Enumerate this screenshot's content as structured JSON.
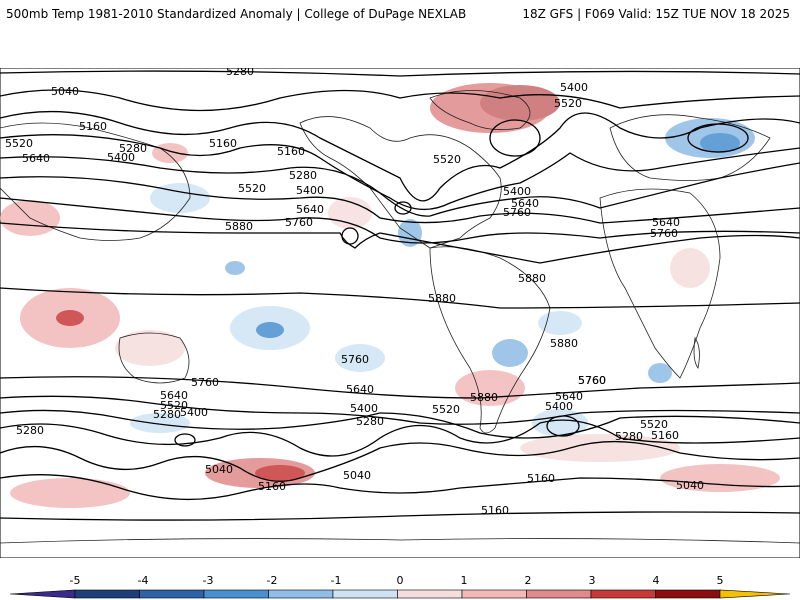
{
  "header": {
    "left": "500mb Temp 1981-2010 Standardized Anomaly | College of DuPage NEXLAB",
    "right": "18Z GFS | F069 Valid: 15Z TUE NOV 18 2025"
  },
  "colorbar": {
    "ticks": [
      "-5",
      "-4",
      "-3",
      "-2",
      "-1",
      "0",
      "1",
      "2",
      "3",
      "4",
      "5"
    ],
    "colors": [
      "#3a2a8c",
      "#1f3f7a",
      "#2f63a8",
      "#4a8fcf",
      "#8fbde6",
      "#cfe3f5",
      "#f6dede",
      "#f2b9b9",
      "#e08a8a",
      "#c83a3a",
      "#8b0d0d",
      "#f5c000"
    ]
  },
  "contour_labels": [
    "5280",
    "5040",
    "5160",
    "5520",
    "5640",
    "5400",
    "5280",
    "5160",
    "5160",
    "5280",
    "5400",
    "5520",
    "5640",
    "5760",
    "5880",
    "5400",
    "5520",
    "5520",
    "5400",
    "5640",
    "5760",
    "5640",
    "5760",
    "5880",
    "5880",
    "5880",
    "5760",
    "5760",
    "5640",
    "5520",
    "5280",
    "5400",
    "5760",
    "5640",
    "5400",
    "5280",
    "5520",
    "5880",
    "5640",
    "5760",
    "5400",
    "5520",
    "5280",
    "5160",
    "5280",
    "5040",
    "5160",
    "5040",
    "5160",
    "5160",
    "5040"
  ]
}
